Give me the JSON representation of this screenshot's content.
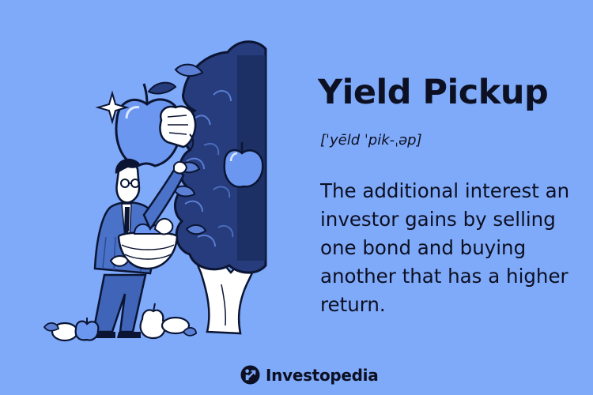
{
  "card": {
    "term": "Yield Pickup",
    "pronunciation": "[ˈyēld ˈpik-ˌəp]",
    "definition": "The additional interest an investor gains by selling one bond and buying another that has a higher return."
  },
  "brand": {
    "name": "Investopedia",
    "logo_icon": "investopedia-logo-icon"
  },
  "illustration": {
    "subject": "man-harvesting-apples-icon",
    "elements": [
      "tree-icon",
      "apple-icon",
      "hand-icon",
      "basket-icon",
      "pear-icon",
      "sparkle-icon"
    ]
  },
  "colors": {
    "background": "#7fa9f9",
    "text": "#0c1022",
    "tree_dark": "#263c7c",
    "apple": "#6b97f0",
    "suit": "#4a72c8",
    "outline": "#0b1533",
    "white": "#ffffff"
  }
}
